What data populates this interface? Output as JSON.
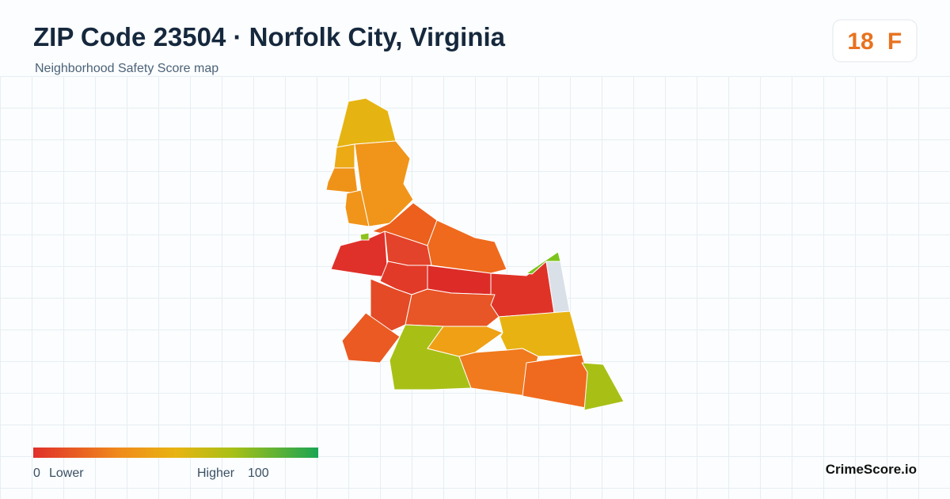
{
  "header": {
    "title": "ZIP Code 23504 · Norfolk City, Virginia",
    "subtitle": "Neighborhood Safety Score map"
  },
  "score": {
    "value": 18,
    "grade": "F"
  },
  "legend": {
    "min": 0,
    "min_label": "Lower",
    "max_label": "Higher",
    "max": 100
  },
  "footer": {
    "brand": "CrimeScore.io"
  }
}
